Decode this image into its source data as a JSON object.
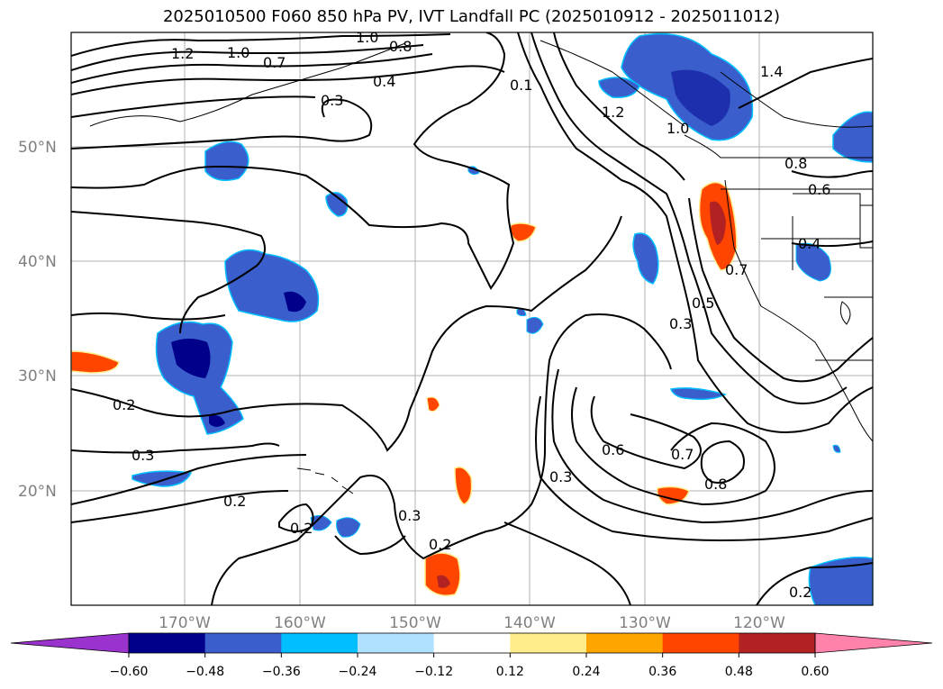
{
  "title": "2025010500 F060 850 hPa PV, IVT Landfall PC (2025010912 - 2025011012)",
  "lat_labels": [
    "50°N",
    "40°N",
    "30°N",
    "20°N"
  ],
  "lon_labels": [
    "170°W",
    "160°W",
    "150°W",
    "140°W",
    "130°W",
    "120°W"
  ],
  "contour_labels": [
    "1.2",
    "1.0",
    "0.7",
    "1.0",
    "0.8",
    "0.4",
    "0.3",
    "1.4",
    "1.2",
    "1.0",
    "0.8",
    "0.6",
    "0.4",
    "0.7",
    "0.5",
    "0.3",
    "0.6",
    "0.7",
    "0.8",
    "0.3",
    "0.2",
    "0.3",
    "0.2",
    "0.2",
    "0.2",
    "0.3",
    "0.2",
    "0.1"
  ],
  "colorbar": {
    "tick_labels": [
      "−0.60",
      "−0.48",
      "−0.36",
      "−0.24",
      "−0.12",
      "0.12",
      "0.24",
      "0.36",
      "0.48",
      "0.60"
    ],
    "colors": [
      "#9a32cd",
      "#00008b",
      "#3a5fcd",
      "#00bfff",
      "#b0e2ff",
      "#ffffff",
      "#ffec8b",
      "#ffa500",
      "#ff4500",
      "#b22222",
      "#ff82ab"
    ]
  }
}
